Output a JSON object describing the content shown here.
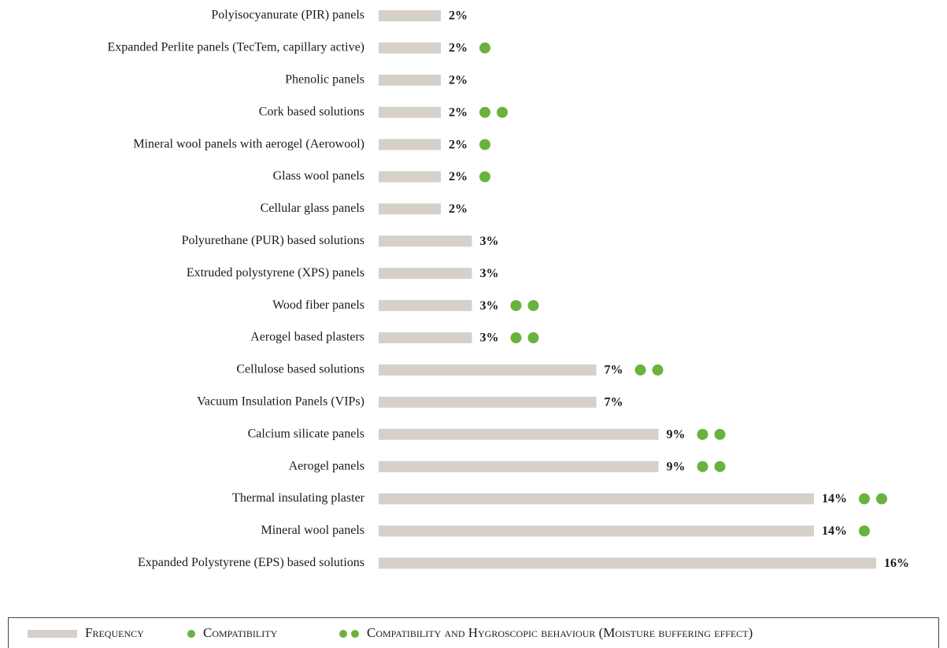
{
  "chart_data": {
    "type": "bar",
    "orientation": "horizontal",
    "categories": [
      "Polyisocyanurate (PIR) panels",
      "Expanded Perlite panels (TecTem, capillary active)",
      "Phenolic panels",
      "Cork based solutions",
      "Mineral wool panels with aerogel (Aerowool)",
      "Glass wool panels",
      "Cellular glass panels",
      "Polyurethane (PUR) based solutions",
      "Extruded polystyrene (XPS) panels",
      "Wood fiber panels",
      "Aerogel based plasters",
      "Cellulose based solutions",
      "Vacuum Insulation Panels (VIPs)",
      "Calcium silicate panels",
      "Aerogel panels",
      "Thermal insulating plaster",
      "Mineral wool panels",
      "Expanded Polystyrene (EPS) based solutions"
    ],
    "series": [
      {
        "name": "Frequency",
        "color": "#d6d0ca",
        "values": [
          2,
          2,
          2,
          2,
          2,
          2,
          2,
          3,
          3,
          3,
          3,
          7,
          7,
          9,
          9,
          14,
          14,
          16
        ],
        "value_labels": [
          "2%",
          "2%",
          "2%",
          "2%",
          "2%",
          "2%",
          "2%",
          "3%",
          "3%",
          "3%",
          "3%",
          "7%",
          "7%",
          "9%",
          "9%",
          "14%",
          "14%",
          "16%"
        ]
      }
    ],
    "markers": {
      "color": "#6ab23e",
      "values": [
        0,
        1,
        0,
        2,
        1,
        1,
        0,
        0,
        0,
        2,
        2,
        2,
        0,
        2,
        2,
        2,
        1,
        0
      ],
      "legend": [
        {
          "name": "Compatibility",
          "count": 1
        },
        {
          "name": "Compatibility and Hygroscopic behaviour (Moisture buffering effect)",
          "count": 2
        }
      ]
    },
    "xlim": [
      0,
      16
    ]
  }
}
